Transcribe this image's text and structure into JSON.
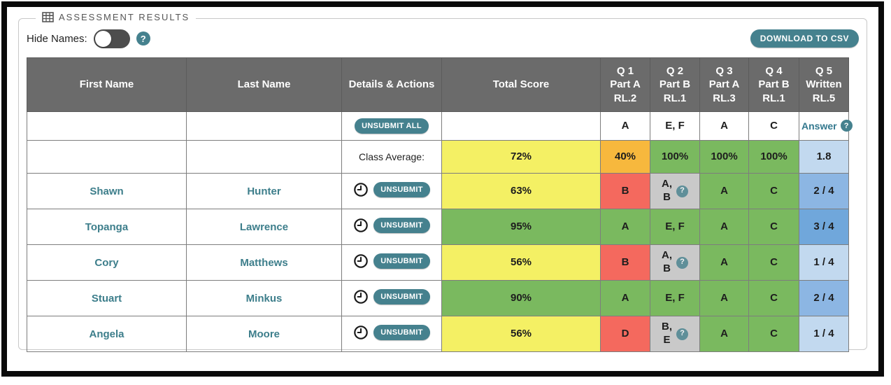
{
  "panel": {
    "legend_label": "ASSESSMENT RESULTS",
    "hide_names_label": "Hide Names:",
    "hide_names_state": "off",
    "download_csv_label": "DOWNLOAD TO CSV"
  },
  "colors": {
    "teal": "#45818e",
    "header_gray": "#6b6b6b",
    "yellow": "#f4f064",
    "orange": "#f7b83d",
    "green": "#7ab95f",
    "red": "#f4695e",
    "gray": "#c9c9c9",
    "blue_light": "#c2d9ef",
    "blue_mid": "#8cb6e3",
    "blue_dark": "#70a7db"
  },
  "table": {
    "headers": [
      {
        "lines": [
          "First Name"
        ]
      },
      {
        "lines": [
          "Last Name"
        ]
      },
      {
        "lines": [
          "Details & Actions"
        ]
      },
      {
        "lines": [
          "Total Score"
        ]
      },
      {
        "lines": [
          "Q 1",
          "Part A",
          "RL.2"
        ]
      },
      {
        "lines": [
          "Q 2",
          "Part B",
          "RL.1"
        ]
      },
      {
        "lines": [
          "Q 3",
          "Part A",
          "RL.3"
        ]
      },
      {
        "lines": [
          "Q 4",
          "Part B",
          "RL.1"
        ]
      },
      {
        "lines": [
          "Q 5",
          "Written",
          "RL.5"
        ]
      }
    ],
    "answer_key_row": {
      "unsubmit_all_label": "UNSUBMIT ALL",
      "answers": [
        {
          "lines": [
            "A"
          ]
        },
        {
          "lines": [
            "E, F"
          ]
        },
        {
          "lines": [
            "A"
          ]
        },
        {
          "lines": [
            "C"
          ]
        }
      ],
      "q5_label": "Answer",
      "q5_help": true
    },
    "class_average_row": {
      "label": "Class Average:",
      "total": {
        "lines": [
          "72%"
        ],
        "color": "yellow"
      },
      "cells": [
        {
          "lines": [
            "40%"
          ],
          "color": "orange"
        },
        {
          "lines": [
            "100%"
          ],
          "color": "green"
        },
        {
          "lines": [
            "100%"
          ],
          "color": "green"
        },
        {
          "lines": [
            "100%"
          ],
          "color": "green"
        },
        {
          "lines": [
            "1.8"
          ],
          "color": "blue_light"
        }
      ]
    },
    "students": [
      {
        "first_name": "Shawn",
        "last_name": "Hunter",
        "unsubmit_label": "UNSUBMIT",
        "total": {
          "lines": [
            "63%"
          ],
          "color": "yellow"
        },
        "cells": [
          {
            "lines": [
              "B"
            ],
            "color": "red"
          },
          {
            "lines": [
              "A,",
              "B"
            ],
            "color": "gray",
            "help": true
          },
          {
            "lines": [
              "A"
            ],
            "color": "green"
          },
          {
            "lines": [
              "C"
            ],
            "color": "green"
          },
          {
            "lines": [
              "2 / 4"
            ],
            "color": "blue_mid"
          }
        ]
      },
      {
        "first_name": "Topanga",
        "last_name": "Lawrence",
        "unsubmit_label": "UNSUBMIT",
        "total": {
          "lines": [
            "95%"
          ],
          "color": "green"
        },
        "cells": [
          {
            "lines": [
              "A"
            ],
            "color": "green"
          },
          {
            "lines": [
              "E, F"
            ],
            "color": "green"
          },
          {
            "lines": [
              "A"
            ],
            "color": "green"
          },
          {
            "lines": [
              "C"
            ],
            "color": "green"
          },
          {
            "lines": [
              "3 / 4"
            ],
            "color": "blue_dark"
          }
        ]
      },
      {
        "first_name": "Cory",
        "last_name": "Matthews",
        "unsubmit_label": "UNSUBMIT",
        "total": {
          "lines": [
            "56%"
          ],
          "color": "yellow"
        },
        "cells": [
          {
            "lines": [
              "B"
            ],
            "color": "red"
          },
          {
            "lines": [
              "A,",
              "B"
            ],
            "color": "gray",
            "help": true
          },
          {
            "lines": [
              "A"
            ],
            "color": "green"
          },
          {
            "lines": [
              "C"
            ],
            "color": "green"
          },
          {
            "lines": [
              "1 / 4"
            ],
            "color": "blue_light"
          }
        ]
      },
      {
        "first_name": "Stuart",
        "last_name": "Minkus",
        "unsubmit_label": "UNSUBMIT",
        "total": {
          "lines": [
            "90%"
          ],
          "color": "green"
        },
        "cells": [
          {
            "lines": [
              "A"
            ],
            "color": "green"
          },
          {
            "lines": [
              "E, F"
            ],
            "color": "green"
          },
          {
            "lines": [
              "A"
            ],
            "color": "green"
          },
          {
            "lines": [
              "C"
            ],
            "color": "green"
          },
          {
            "lines": [
              "2 / 4"
            ],
            "color": "blue_mid"
          }
        ]
      },
      {
        "first_name": "Angela",
        "last_name": "Moore",
        "unsubmit_label": "UNSUBMIT",
        "total": {
          "lines": [
            "56%"
          ],
          "color": "yellow"
        },
        "cells": [
          {
            "lines": [
              "D"
            ],
            "color": "red"
          },
          {
            "lines": [
              "B,",
              "E"
            ],
            "color": "gray",
            "help": true
          },
          {
            "lines": [
              "A"
            ],
            "color": "green"
          },
          {
            "lines": [
              "C"
            ],
            "color": "green"
          },
          {
            "lines": [
              "1 / 4"
            ],
            "color": "blue_light"
          }
        ]
      }
    ]
  }
}
